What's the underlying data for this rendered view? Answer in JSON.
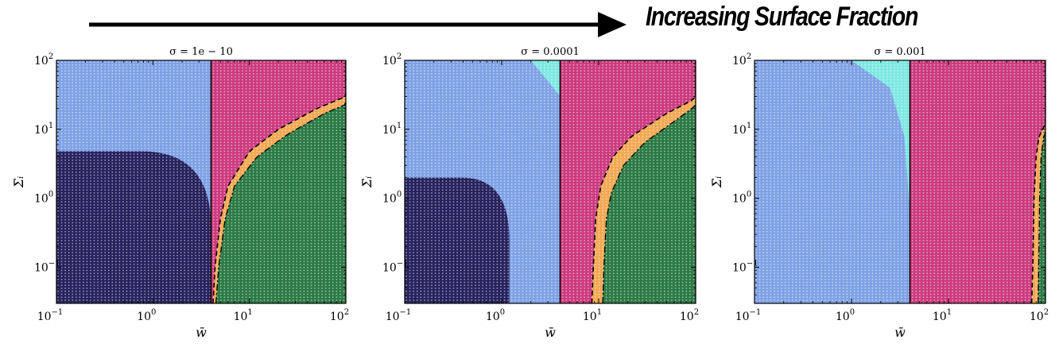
{
  "banner": {
    "text": "Increasing Surface Fraction"
  },
  "colors": {
    "region_dark": "#26235e",
    "region_blue": "#7fa2e6",
    "region_pink": "#cc3b7f",
    "region_green": "#2b7a44",
    "region_orange": "#f3a853",
    "region_cyan": "#7ee8e2",
    "grid_dot": "#ffffff",
    "axis": "#000000"
  },
  "chart_data": [
    {
      "type": "heatmap",
      "title": "σ = 1e − 10",
      "xlabel": "w̄",
      "ylabel": "Σ̄ᵢ",
      "xscale": "log",
      "yscale": "log",
      "xlim": [
        0.1,
        100
      ],
      "ylim": [
        0.03,
        100
      ],
      "xticks": [
        {
          "v": 0.1,
          "b": "10",
          "e": "−1"
        },
        {
          "v": 1,
          "b": "10",
          "e": "0"
        },
        {
          "v": 10,
          "b": "10",
          "e": "1"
        },
        {
          "v": 100,
          "b": "10",
          "e": "2"
        }
      ],
      "yticks": [
        {
          "v": 0.1,
          "b": "10",
          "e": "−1"
        },
        {
          "v": 1,
          "b": "10",
          "e": "0"
        },
        {
          "v": 10,
          "b": "10",
          "e": "1"
        },
        {
          "v": 100,
          "b": "10",
          "e": "2"
        }
      ],
      "vline_x": 4.0,
      "dark_region": {
        "w_max": 4.0,
        "sigma_max": 4.8
      },
      "cyan_region": null,
      "boundaries": {
        "upper_dashed": [
          [
            4.2,
            0.03
          ],
          [
            4.4,
            0.1
          ],
          [
            5.0,
            0.5
          ],
          [
            6,
            1.5
          ],
          [
            10,
            4.8
          ],
          [
            20,
            10
          ],
          [
            50,
            20
          ],
          [
            100,
            30
          ]
        ],
        "lower_dashdot": [
          [
            4.5,
            0.03
          ],
          [
            4.8,
            0.1
          ],
          [
            5.6,
            0.5
          ],
          [
            7,
            1.5
          ],
          [
            12,
            4
          ],
          [
            25,
            8.5
          ],
          [
            60,
            17
          ],
          [
            100,
            23
          ]
        ]
      },
      "grid_points": [
        40,
        34
      ]
    },
    {
      "type": "heatmap",
      "title": "σ = 0.0001",
      "xlabel": "w̄",
      "ylabel": "Σ̄ᵢ",
      "xscale": "log",
      "yscale": "log",
      "xlim": [
        0.1,
        100
      ],
      "ylim": [
        0.03,
        100
      ],
      "xticks": [
        {
          "v": 0.1,
          "b": "10",
          "e": "−1"
        },
        {
          "v": 1,
          "b": "10",
          "e": "0"
        },
        {
          "v": 10,
          "b": "10",
          "e": "1"
        },
        {
          "v": 100,
          "b": "10",
          "e": "2"
        }
      ],
      "yticks": [
        {
          "v": 0.1,
          "b": "10",
          "e": "−1"
        },
        {
          "v": 1,
          "b": "10",
          "e": "0"
        },
        {
          "v": 10,
          "b": "10",
          "e": "1"
        },
        {
          "v": 100,
          "b": "10",
          "e": "2"
        }
      ],
      "vline_x": 4.0,
      "dark_region": {
        "w_max": 1.2,
        "sigma_max": 2.0
      },
      "cyan_region": {
        "corner": [
          [
            2.0,
            100
          ],
          [
            4.0,
            100
          ],
          [
            4.0,
            30
          ],
          [
            3.0,
            50
          ]
        ]
      },
      "boundaries": {
        "upper_dashed": [
          [
            8.5,
            0.03
          ],
          [
            8.8,
            0.1
          ],
          [
            9.3,
            0.5
          ],
          [
            10.5,
            1.5
          ],
          [
            14,
            4
          ],
          [
            22,
            8
          ],
          [
            50,
            17
          ],
          [
            100,
            28
          ]
        ],
        "lower_dashdot": [
          [
            11,
            0.03
          ],
          [
            11.3,
            0.1
          ],
          [
            12,
            0.5
          ],
          [
            13.5,
            1.2
          ],
          [
            18,
            3
          ],
          [
            30,
            6.5
          ],
          [
            60,
            13
          ],
          [
            100,
            22
          ]
        ]
      },
      "grid_points": [
        40,
        34
      ]
    },
    {
      "type": "heatmap",
      "title": "σ = 0.001",
      "xlabel": "w̄",
      "ylabel": "Σ̄ᵢ",
      "xscale": "log",
      "yscale": "log",
      "xlim": [
        0.1,
        100
      ],
      "ylim": [
        0.03,
        100
      ],
      "xticks": [
        {
          "v": 0.1,
          "b": "10",
          "e": "−1"
        },
        {
          "v": 1,
          "b": "10",
          "e": "0"
        },
        {
          "v": 10,
          "b": "10",
          "e": "1"
        },
        {
          "v": 100,
          "b": "10",
          "e": "2"
        }
      ],
      "yticks": [
        {
          "v": 0.1,
          "b": "10",
          "e": "−1"
        },
        {
          "v": 1,
          "b": "10",
          "e": "0"
        },
        {
          "v": 10,
          "b": "10",
          "e": "1"
        },
        {
          "v": 100,
          "b": "10",
          "e": "2"
        }
      ],
      "vline_x": 4.0,
      "dark_region": null,
      "cyan_region": {
        "corner": [
          [
            1.0,
            100
          ],
          [
            4.0,
            100
          ],
          [
            4.0,
            0.6
          ],
          [
            3.5,
            8
          ],
          [
            2.5,
            40
          ]
        ]
      },
      "boundaries": {
        "upper_dashed": [
          [
            72,
            0.03
          ],
          [
            74,
            0.1
          ],
          [
            76,
            1.0
          ],
          [
            80,
            4
          ],
          [
            86,
            8
          ],
          [
            100,
            12
          ]
        ],
        "lower_dashdot": [
          [
            84,
            0.03
          ],
          [
            85,
            0.1
          ],
          [
            87,
            1.0
          ],
          [
            90,
            4
          ],
          [
            96,
            8
          ],
          [
            100,
            9
          ]
        ]
      },
      "grid_points": [
        40,
        34
      ]
    }
  ]
}
